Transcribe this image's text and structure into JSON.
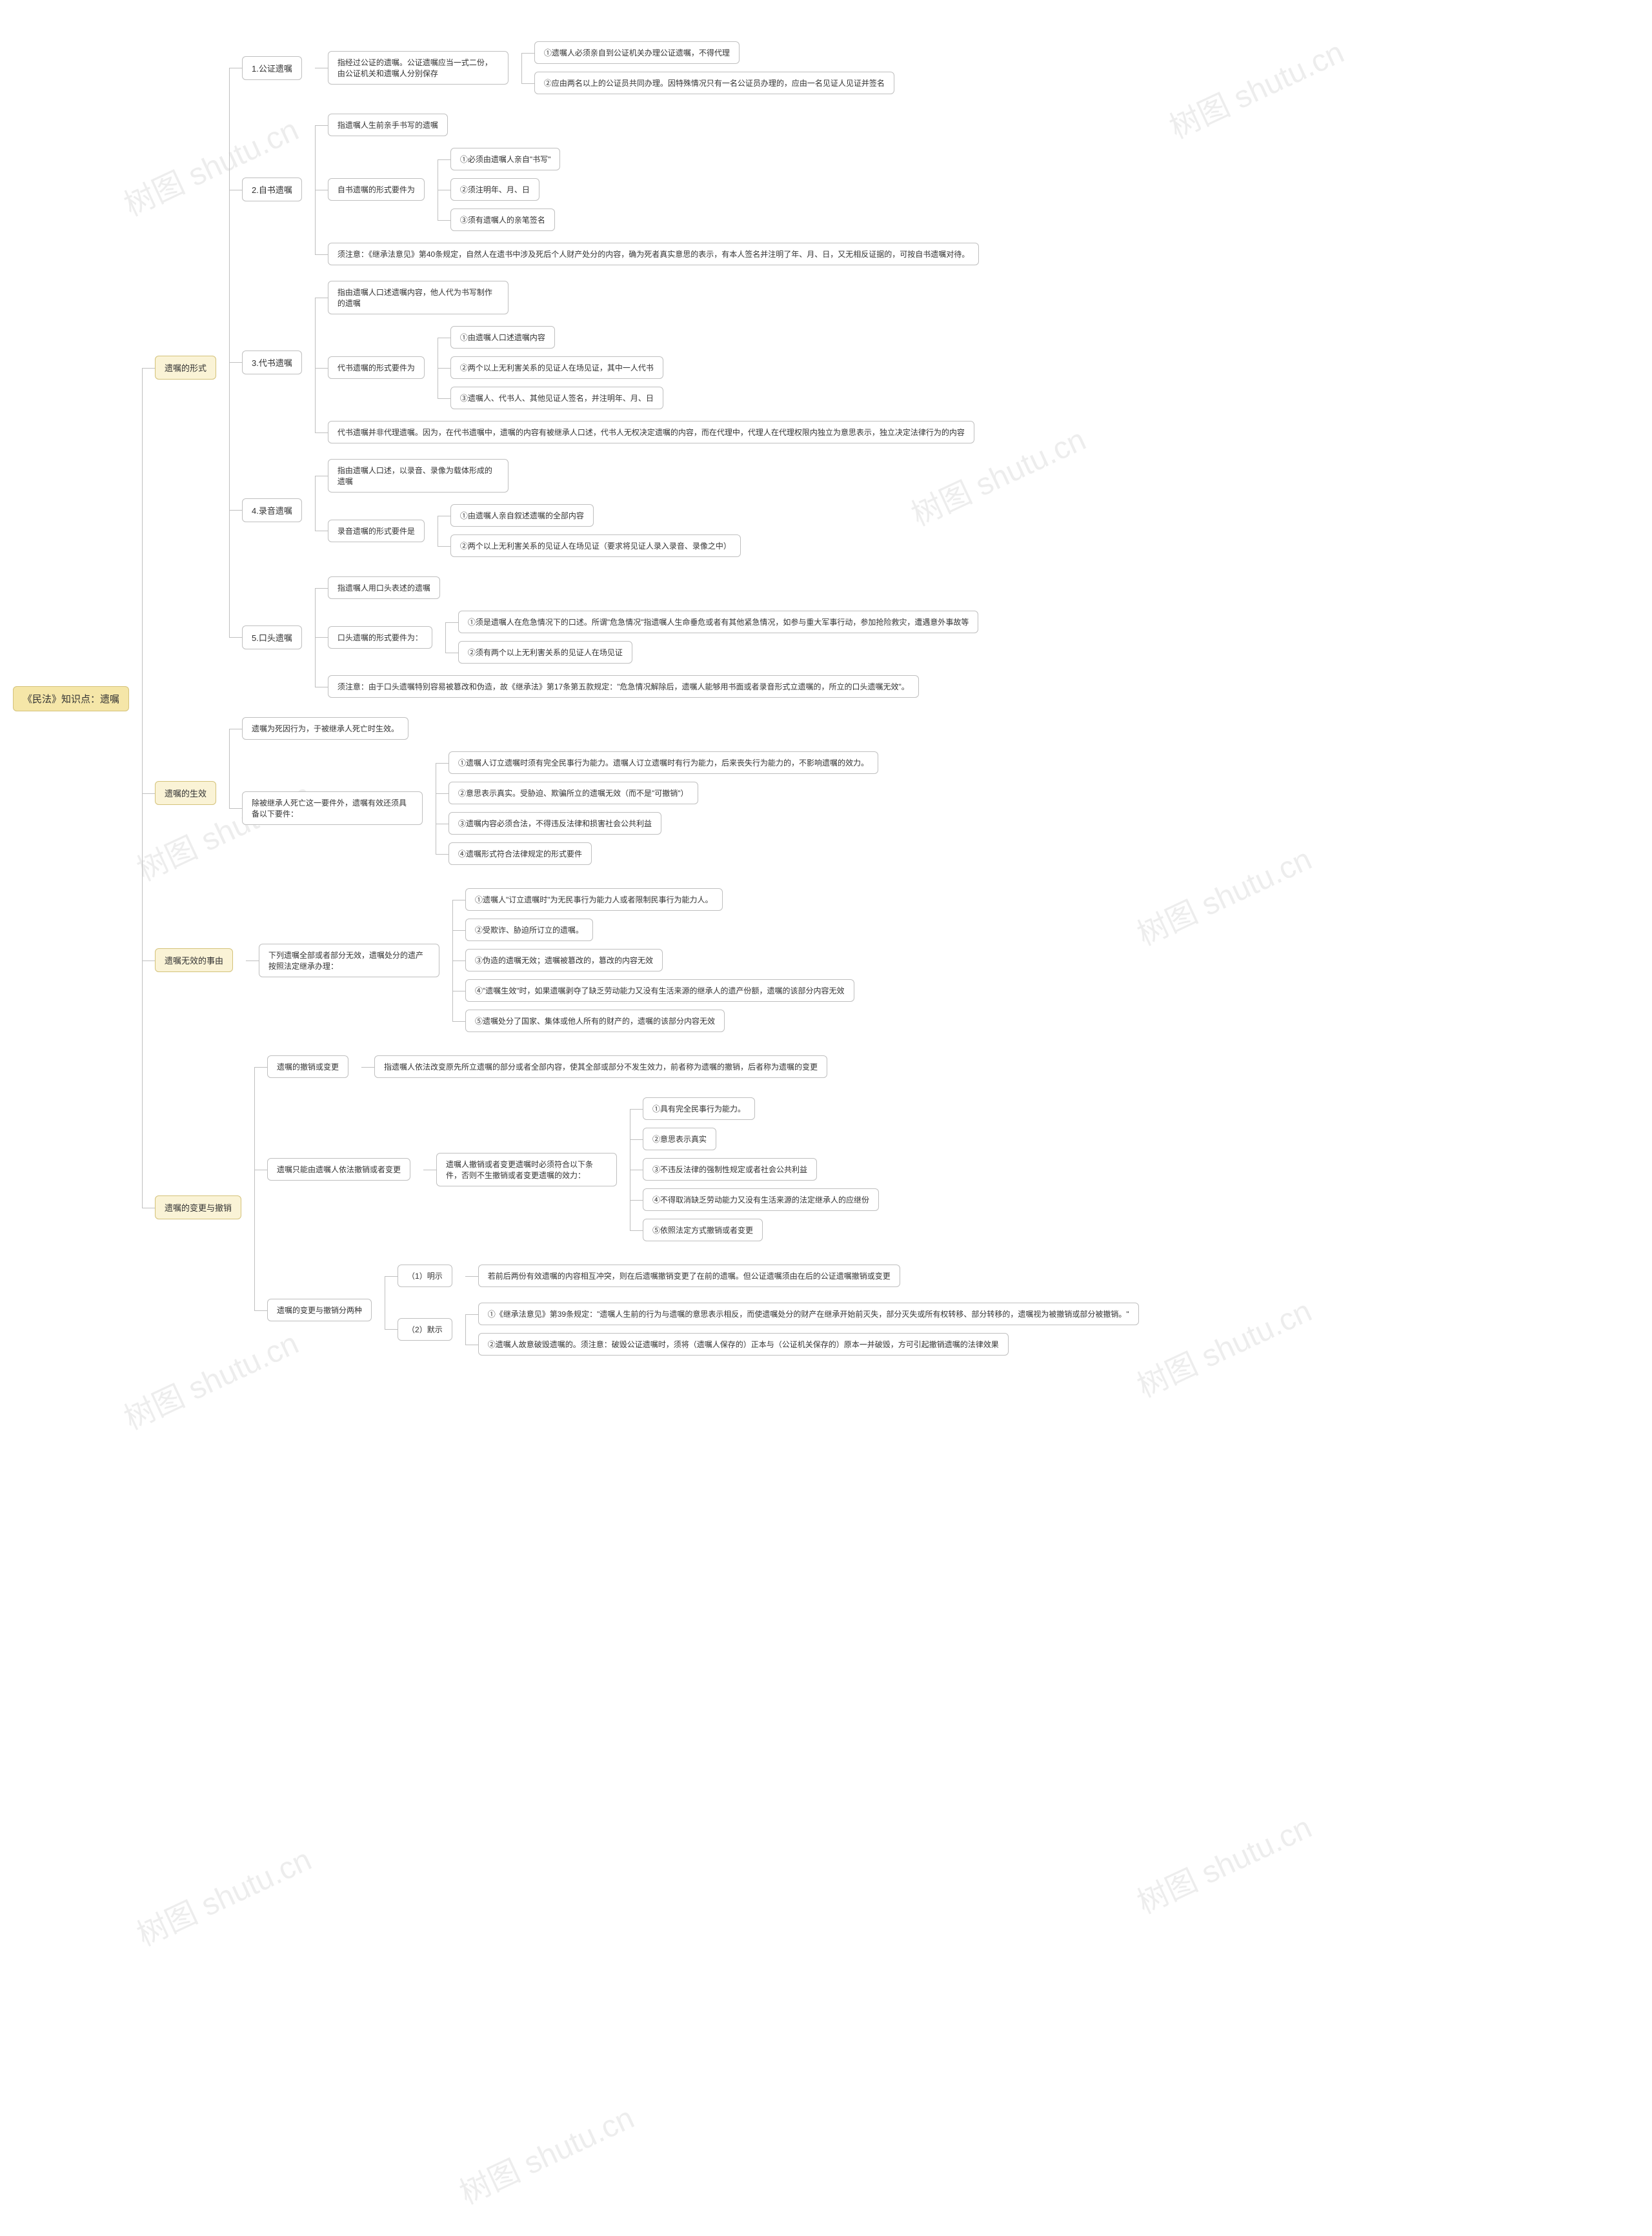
{
  "watermarks": [
    "树图 shutu.cn",
    "树图 shutu.cn",
    "树图 shutu.cn",
    "树图 shutu.cn",
    "树图 shutu.cn",
    "树图 shutu.cn",
    "树图 shutu.cn",
    "树图 shutu.cn",
    "树图 shutu.cn",
    "树图 shutu.cn"
  ],
  "root": "《民法》知识点：遗嘱",
  "styling": {
    "root_bg": "#f5e6a8",
    "l1_bg": "#faf3d6",
    "leaf_bg": "#ffffff",
    "border_color": "#bfbfbf",
    "border_radius": 6,
    "font_size_root": 15,
    "font_size_node": 13,
    "font_size_leaf": 12,
    "connector_color": "#bfbfbf",
    "watermark_color": "rgba(0,0,0,0.07)",
    "watermark_size": 48,
    "watermark_rotate": -25
  },
  "sections": [
    {
      "title": "遗嘱的形式",
      "children": [
        {
          "title": "1.公证遗嘱",
          "desc": "指经过公证的遗嘱。公证遗嘱应当一式二份，由公证机关和遗嘱人分别保存",
          "items": [
            "①遗嘱人必须亲自到公证机关办理公证遗嘱，不得代理",
            "②应由两名以上的公证员共同办理。因特殊情况只有一名公证员办理的，应由一名见证人见证并签名"
          ]
        },
        {
          "title": "2.自书遗嘱",
          "desc": "指遗嘱人生前亲手书写的遗嘱",
          "sub": {
            "label": "自书遗嘱的形式要件为",
            "items": [
              "①必须由遗嘱人亲自\"书写\"",
              "②须注明年、月、日",
              "③须有遗嘱人的亲笔签名"
            ]
          },
          "note": "须注意：《继承法意见》第40条规定，自然人在遗书中涉及死后个人财产处分的内容，确为死者真实意思的表示，有本人签名并注明了年、月、日，又无相反证据的，可按自书遗嘱对待。"
        },
        {
          "title": "3.代书遗嘱",
          "desc": "指由遗嘱人口述遗嘱内容，他人代为书写制作的遗嘱",
          "sub": {
            "label": "代书遗嘱的形式要件为",
            "items": [
              "①由遗嘱人口述遗嘱内容",
              "②两个以上无利害关系的见证人在场见证，其中一人代书",
              "③遗嘱人、代书人、其他见证人签名，并注明年、月、日"
            ]
          },
          "note": "代书遗嘱并非代理遗嘱。因为，在代书遗嘱中，遗嘱的内容有被继承人口述，代书人无权决定遗嘱的内容，而在代理中，代理人在代理权限内独立为意思表示，独立决定法律行为的内容"
        },
        {
          "title": "4.录音遗嘱",
          "desc": "指由遗嘱人口述，以录音、录像为载体形成的遗嘱",
          "sub": {
            "label": "录音遗嘱的形式要件是",
            "items": [
              "①由遗嘱人亲自叙述遗嘱的全部内容",
              "②两个以上无利害关系的见证人在场见证（要求将见证人录入录音、录像之中）"
            ]
          }
        },
        {
          "title": "5.口头遗嘱",
          "desc": "指遗嘱人用口头表述的遗嘱",
          "sub": {
            "label": "口头遗嘱的形式要件为：",
            "items": [
              "①须是遗嘱人在危急情况下的口述。所谓\"危急情况\"指遗嘱人生命垂危或者有其他紧急情况，如参与重大军事行动，参加抢险救灾，遭遇意外事故等",
              "②须有两个以上无利害关系的见证人在场见证"
            ]
          },
          "note": "须注意：由于口头遗嘱特别容易被篡改和伪造，故《继承法》第17条第五款规定：\"危急情况解除后，遗嘱人能够用书面或者录音形式立遗嘱的，所立的口头遗嘱无效\"。"
        }
      ]
    },
    {
      "title": "遗嘱的生效",
      "children": [
        {
          "line": "遗嘱为死因行为，于被继承人死亡时生效。"
        },
        {
          "label": "除被继承人死亡这一要件外，遗嘱有效还须具备以下要件：",
          "items": [
            "①遗嘱人订立遗嘱时须有完全民事行为能力。遗嘱人订立遗嘱时有行为能力，后来丧失行为能力的，不影响遗嘱的效力。",
            "②意思表示真实。受胁迫、欺骗所立的遗嘱无效（而不是\"可撤销\"）",
            "③遗嘱内容必须合法，不得违反法律和损害社会公共利益",
            "④遗嘱形式符合法律规定的形式要件"
          ]
        }
      ]
    },
    {
      "title": "遗嘱无效的事由",
      "children": [
        {
          "label": "下列遗嘱全部或者部分无效，遗嘱处分的遗产按照法定继承办理：",
          "items": [
            "①遗嘱人\"订立遗嘱时\"为无民事行为能力人或者限制民事行为能力人。",
            "②受欺诈、胁迫所订立的遗嘱。",
            "③伪造的遗嘱无效；遗嘱被篡改的，篡改的内容无效",
            "④\"遗嘱生效\"时，如果遗嘱剥夺了缺乏劳动能力又没有生活来源的继承人的遗产份额，遗嘱的该部分内容无效",
            "⑤遗嘱处分了国家、集体或他人所有的财产的，遗嘱的该部分内容无效"
          ]
        }
      ]
    },
    {
      "title": "遗嘱的变更与撤销",
      "children": [
        {
          "label": "遗嘱的撤销或变更",
          "line": "指遗嘱人依法改变原先所立遗嘱的部分或者全部内容，使其全部或部分不发生效力，前者称为遗嘱的撤销，后者称为遗嘱的变更"
        },
        {
          "label": "遗嘱只能由遗嘱人依法撤销或者变更",
          "sub": {
            "label": "遗嘱人撤销或者变更遗嘱时必须符合以下条件，否则不生撤销或者变更遗嘱的效力：",
            "items": [
              "①具有完全民事行为能力。",
              "②意思表示真实",
              "③不违反法律的强制性规定或者社会公共利益",
              "④不得取消缺乏劳动能力又没有生活来源的法定继承人的应继份",
              "⑤依照法定方式撤销或者变更"
            ]
          }
        },
        {
          "label": "遗嘱的变更与撤销分两种",
          "items": [
            {
              "k": "（1）明示",
              "v": "若前后两份有效遗嘱的内容相互冲突，则在后遗嘱撤销变更了在前的遗嘱。但公证遗嘱须由在后的公证遗嘱撤销或变更"
            },
            {
              "k": "（2）默示",
              "vlist": [
                "①《继承法意见》第39条规定：\"遗嘱人生前的行为与遗嘱的意思表示相反，而使遗嘱处分的财产在继承开始前灭失，部分灭失或所有权转移、部分转移的，遗嘱视为被撤销或部分被撤销。\"",
                "②遗嘱人故意破毁遗嘱的。须注意：破毁公证遗嘱时，须将（遗嘱人保存的）正本与（公证机关保存的）原本一并破毁，方可引起撤销遗嘱的法律效果"
              ]
            }
          ]
        }
      ]
    }
  ]
}
